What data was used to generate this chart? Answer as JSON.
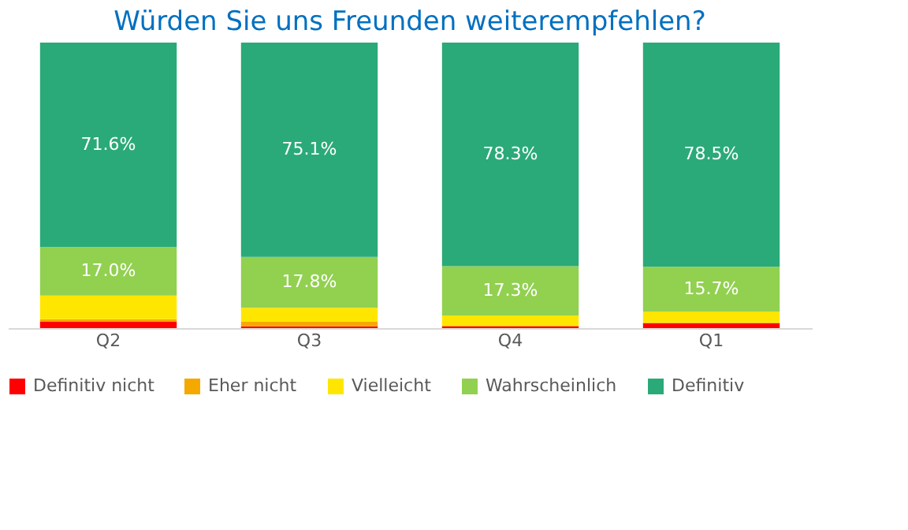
{
  "chart_data": {
    "type": "bar",
    "stacked": true,
    "title": "Würden Sie uns Freunden weiterempfehlen?",
    "categories": [
      "Q2",
      "Q3",
      "Q4",
      "Q1"
    ],
    "ylim": [
      0,
      100
    ],
    "tick_labels": "x",
    "legend": "bottom",
    "grid": false,
    "series": [
      {
        "name": "Definitiv nicht",
        "color": "#ff0000",
        "values": [
          2.2,
          0.6,
          0.6,
          1.8
        ]
      },
      {
        "name": "Eher nicht",
        "color": "#f5a800",
        "values": [
          0.9,
          1.6,
          0.4,
          0
        ]
      },
      {
        "name": "Vielleicht",
        "color": "#ffe600",
        "values": [
          8.3,
          4.9,
          3.4,
          4.0
        ]
      },
      {
        "name": "Wahrscheinlich",
        "color": "#92d050",
        "values": [
          17.0,
          17.8,
          17.3,
          15.7
        ],
        "value_labels": [
          "17.0%",
          "17.8%",
          "17.3%",
          "15.7%"
        ]
      },
      {
        "name": "Definitiv",
        "color": "#2aaa78",
        "values": [
          71.6,
          75.1,
          78.3,
          78.5
        ],
        "value_labels": [
          "71.6%",
          "75.1%",
          "78.3%",
          "78.5%"
        ]
      }
    ]
  }
}
